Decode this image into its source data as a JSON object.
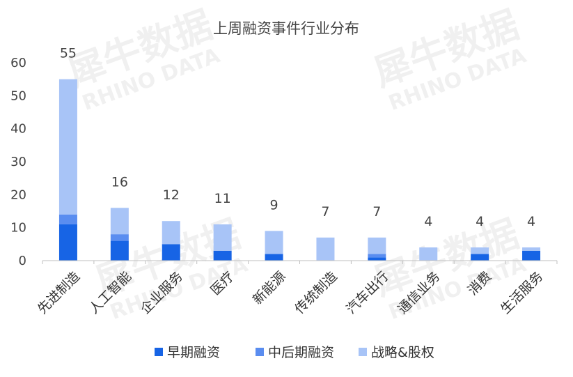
{
  "watermark": {
    "cn": "犀牛数据",
    "en": "RHINO DATA"
  },
  "chart_data": {
    "type": "bar",
    "stacked": true,
    "title": "上周融资事件行业分布",
    "categories": [
      "先进制造",
      "人工智能",
      "企业服务",
      "医疗",
      "新能源",
      "传统制造",
      "汽车出行",
      "通信业务",
      "消费",
      "生活服务"
    ],
    "series": [
      {
        "name": "早期融资",
        "color": "#1764e5",
        "values": [
          11,
          6,
          5,
          3,
          2,
          0,
          1,
          0,
          2,
          3
        ]
      },
      {
        "name": "中后期融资",
        "color": "#5a8df0",
        "values": [
          3,
          2,
          0,
          0,
          0,
          0,
          1,
          0,
          0,
          0
        ]
      },
      {
        "name": "战略&股权",
        "color": "#a8c4f7",
        "values": [
          41,
          8,
          7,
          8,
          7,
          7,
          5,
          4,
          2,
          1
        ]
      }
    ],
    "totals": [
      "55",
      "16",
      "12",
      "11",
      "9",
      "7",
      "7",
      "4",
      "4",
      "4"
    ],
    "ylim": [
      0,
      60
    ],
    "yticks": [
      "0",
      "10",
      "20",
      "30",
      "40",
      "50",
      "60"
    ],
    "xlabel": "",
    "ylabel": "",
    "grid": false,
    "legend_position": "bottom"
  }
}
